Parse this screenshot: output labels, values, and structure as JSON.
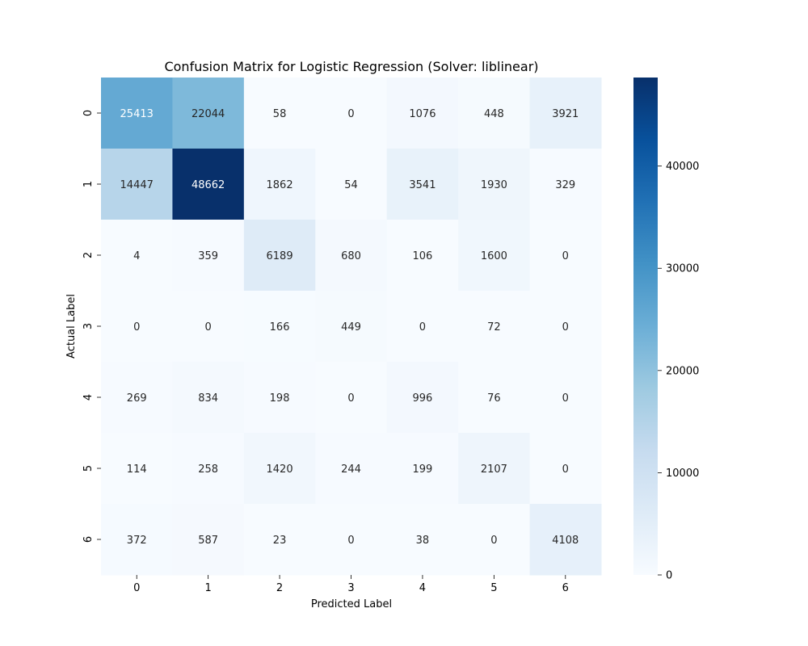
{
  "chart_data": {
    "type": "heatmap",
    "title": "Confusion Matrix for Logistic Regression (Solver: liblinear)",
    "xlabel": "Predicted Label",
    "ylabel": "Actual Label",
    "x_categories": [
      "0",
      "1",
      "2",
      "3",
      "4",
      "5",
      "6"
    ],
    "y_categories": [
      "0",
      "1",
      "2",
      "3",
      "4",
      "5",
      "6"
    ],
    "values": [
      [
        25413,
        22044,
        58,
        0,
        1076,
        448,
        3921
      ],
      [
        14447,
        48662,
        1862,
        54,
        3541,
        1930,
        329
      ],
      [
        4,
        359,
        6189,
        680,
        106,
        1600,
        0
      ],
      [
        0,
        0,
        166,
        449,
        0,
        72,
        0
      ],
      [
        269,
        834,
        198,
        0,
        996,
        76,
        0
      ],
      [
        114,
        258,
        1420,
        244,
        199,
        2107,
        0
      ],
      [
        372,
        587,
        23,
        0,
        38,
        0,
        4108
      ]
    ],
    "colormap": "Blues",
    "colormap_stops": [
      "#f7fbff",
      "#deebf7",
      "#c6dbef",
      "#9ecae1",
      "#6baed6",
      "#4292c6",
      "#2171b5",
      "#08519c",
      "#08306b"
    ],
    "value_range": [
      0,
      48662
    ],
    "colorbar_ticks": [
      "0",
      "10000",
      "20000",
      "30000",
      "40000"
    ],
    "annotation_text_color_dark": "#262626",
    "annotation_text_color_light": "#ffffff"
  }
}
